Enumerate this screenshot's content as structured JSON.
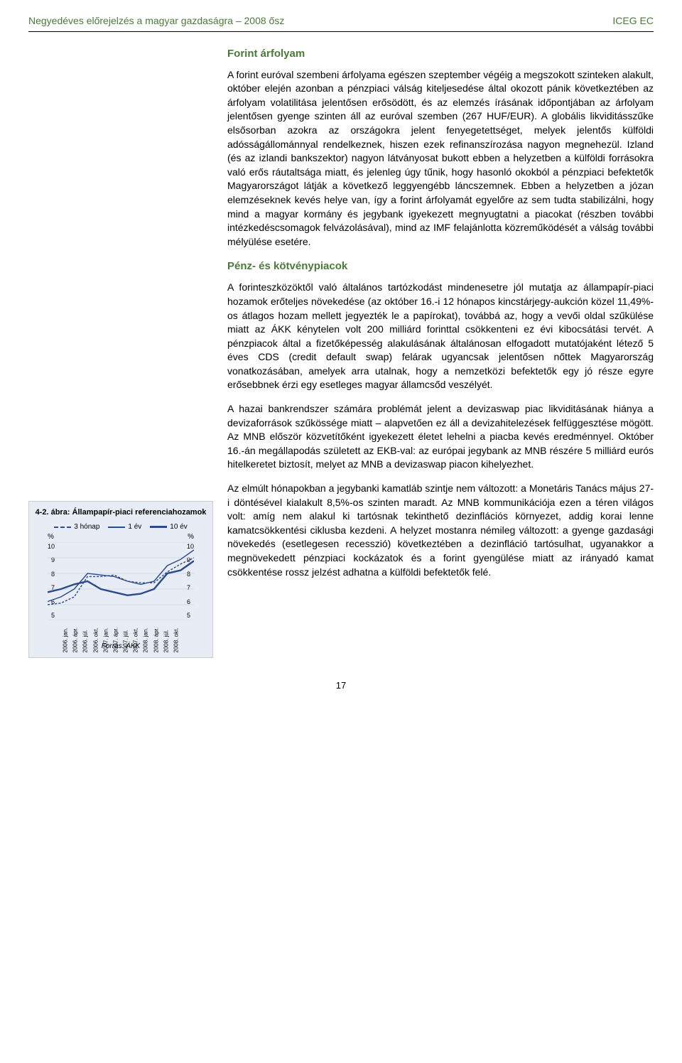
{
  "header": {
    "left": "Negyedéves előrejelzés a magyar gazdaságra – 2008 ősz",
    "right": "ICEG EC",
    "color": "#4a7a3a"
  },
  "section1": {
    "title": "Forint árfolyam",
    "body": "A forint euróval szembeni árfolyama egészen szeptember végéig a megszokott szinteken alakult, október elején azonban a pénzpiaci válság kiteljesedése által okozott pánik következtében az árfolyam volatilitása jelentősen erősödött, és az elemzés írásának időpontjában az árfolyam jelentősen gyenge szinten áll az euróval szemben (267 HUF/EUR). A globális likviditásszűke elsősorban azokra az országokra jelent fenyegetettséget, melyek jelentős külföldi adósságállománnyal rendelkeznek, hiszen ezek refinanszírozása nagyon megnehezül. Izland (és az izlandi bankszektor) nagyon látványosat bukott ebben a helyzetben a külföldi forrásokra való erős ráutaltsága miatt, és jelenleg úgy tűnik, hogy hasonló okokból a pénzpiaci befektetők Magyarországot látják a következő leggyengébb láncszemnek. Ebben a helyzetben a józan elemzéseknek kevés helye van, így a forint árfolyamát egyelőre az sem tudta stabilizálni, hogy mind a magyar kormány és jegybank igyekezett megnyugtatni a piacokat (részben további intézkedéscsomagok felvázolásával), mind az IMF felajánlotta közreműködését a válság további mélyülése esetére."
  },
  "section2": {
    "title": "Pénz- és kötvénypiacok",
    "p1": "A forinteszközöktől való általános tartózkodást mindenesetre jól mutatja az állampapír-piaci hozamok erőteljes növekedése (az október 16.-i 12 hónapos kincstárjegy-aukción közel 11,49%-os átlagos hozam mellett jegyezték le a papírokat), továbbá az, hogy a vevői oldal szűkülése miatt az ÁKK kénytelen volt 200 milliárd forinttal csökkenteni ez évi kibocsátási tervét. A pénzpiacok által a fizetőképesség alakulásának általánosan elfogadott mutatójaként létező 5 éves CDS (credit default swap) felárak ugyancsak jelentősen nőttek Magyarország vonatkozásában, amelyek arra utalnak, hogy a nemzetközi befektetők egy jó része egyre erősebbnek érzi egy esetleges magyar államcsőd veszélyét.",
    "p2": "A hazai bankrendszer számára problémát jelent a devizaswap piac likviditásának hiánya a devizaforrások szűkössége miatt – alapvetően ez áll a devizahitelezések felfüggesztése mögött. Az MNB először közvetítőként igyekezett életet lehelni a piacba kevés eredménnyel. Október 16.-án megállapodás született az EKB-val: az európai jegybank az MNB részére 5 milliárd eurós hitelkeretet biztosít, melyet az MNB a devizaswap piacon kihelyezhet.",
    "p3": "Az elmúlt hónapokban a jegybanki kamatláb szintje nem változott: a Monetáris Tanács május 27-i döntésével kialakult 8,5%-os szinten maradt. Az MNB kommunikációja ezen a téren világos volt: amíg nem alakul ki tartósnak tekinthető dezinflációs környezet, addig korai lenne kamatcsökkentési ciklusba kezdeni. A helyzet mostanra némileg változott: a gyenge gazdasági növekedés (esetlegesen recesszió) következtében a dezinfláció tartósulhat, ugyanakkor a megnövekedett pénzpiaci kockázatok és a forint gyengülése miatt az irányadó kamat csökkentése rossz jelzést adhatna a külföldi befektetők felé."
  },
  "chart": {
    "type": "line",
    "title": "4-2. ábra: Állampapír-piaci referenciahozamok",
    "legend": [
      {
        "label": "3 hónap",
        "color": "#2a4a8a",
        "dash": "3,2"
      },
      {
        "label": "1 év",
        "color": "#2a4a8a",
        "dash": ""
      },
      {
        "label": "10 év",
        "color": "#2a4a8a",
        "dash": ""
      }
    ],
    "pct_label": "%",
    "ylim": [
      5,
      10
    ],
    "ytick_step": 1,
    "yticks": [
      "10",
      "9",
      "8",
      "7",
      "6",
      "5"
    ],
    "xticks": [
      "2006. jan.",
      "2006. ápr.",
      "2006. júl.",
      "2006. okt.",
      "2007. jan.",
      "2007. ápr.",
      "2007. júl.",
      "2007. okt.",
      "2008. jan.",
      "2008. ápr.",
      "2008. júl.",
      "2008. okt."
    ],
    "series": {
      "m3": [
        6.0,
        6.1,
        6.5,
        7.8,
        7.8,
        7.9,
        7.5,
        7.4,
        7.4,
        8.1,
        8.6,
        9.0
      ],
      "y1": [
        6.2,
        6.5,
        7.0,
        8.0,
        7.9,
        7.8,
        7.5,
        7.3,
        7.5,
        8.5,
        8.9,
        9.5
      ],
      "y10": [
        6.8,
        7.0,
        7.3,
        7.5,
        7.0,
        6.8,
        6.6,
        6.7,
        7.0,
        8.0,
        8.2,
        8.8
      ]
    },
    "background_color": "#e8edf5",
    "line_color": "#2a4a8a",
    "grid_color": "#c0c8d8",
    "source": "Forrás: ÁKK"
  },
  "page_number": "17"
}
